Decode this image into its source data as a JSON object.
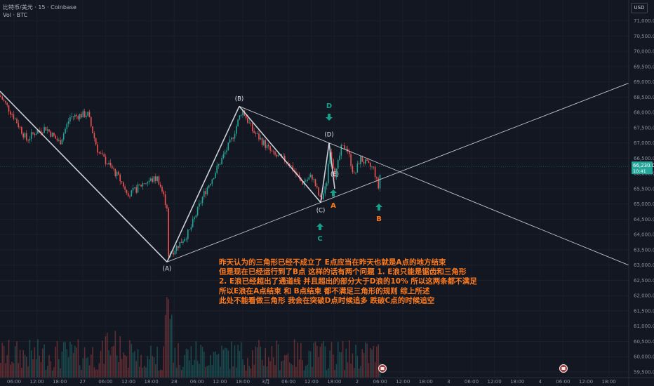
{
  "header": {
    "symbol_line": "比特币/美元 · 15 · Coinbase",
    "volume_line": "Vol · BTC"
  },
  "currency_button": "USD",
  "price_tag": {
    "price": "66,230.08",
    "countdown": "10:41"
  },
  "colors": {
    "background": "#131722",
    "up": "#26a69a",
    "down": "#ef5350",
    "lines": "#e0e3eb",
    "annotation": "#ff7a1a",
    "arrow": "#14a08a",
    "price_tag": "#26a69a"
  },
  "chart_data": {
    "type": "candlestick",
    "y_ticks": [
      "71,000.00",
      "70,500.00",
      "70,000.00",
      "69,500.00",
      "69,000.00",
      "68,500.00",
      "68,000.00",
      "67,500.00",
      "67,000.00",
      "66,500.00",
      "66,000.00",
      "65,500.00",
      "65,000.00",
      "64,500.00",
      "64,000.00",
      "63,500.00",
      "63,000.00",
      "62,500.00",
      "62,000.00",
      "61,500.00",
      "61,000.00",
      "60,500.00",
      "60,000.00",
      "59,500.00"
    ],
    "ylim": [
      59400,
      71500
    ],
    "x_ticks": [
      "06:00",
      "12:00",
      "18:00",
      "27",
      "06:00",
      "12:00",
      "18:00",
      "28",
      "06:00",
      "12:00",
      "18:00",
      "3月",
      "06:00",
      "12:00",
      "18:00",
      "2",
      "06:00",
      "12:00",
      "18:00",
      "3",
      "06:00",
      "12:00",
      "18:00",
      "4",
      "06:00",
      "12:00",
      "18:00",
      "5"
    ],
    "wave_points": [
      {
        "label": "(A)",
        "price": 63100
      },
      {
        "label": "(B)",
        "price": 68200
      },
      {
        "label": "(C)",
        "price": 65050
      },
      {
        "label": "(D)",
        "price": 67000
      },
      {
        "label": "(E)",
        "price": 65500
      }
    ],
    "arrow_labels": [
      {
        "label": "D",
        "direction": "down"
      },
      {
        "label": "A",
        "direction": "up"
      },
      {
        "label": "C",
        "direction": "up"
      },
      {
        "label": "B",
        "direction": "up"
      }
    ],
    "annotation_lines": [
      "昨天认为的三角形已经不成立了 E点应当在昨天也就是A点的地方结束",
      "但是现在已经运行到了B点 这样的话有两个问题 1. E浪只能是锯齿和三角形",
      "2. E浪已经超出了通道线 并且超出的部分大于D浪的10% 所以这两条都不满足",
      "所以E浪在A点结束 和 B点结束 都不满足三角形的规则 综上所述",
      "此处不能看做三角形  我会在突破D点时候追多 跌破C点的时候追空"
    ],
    "close_price": 66230.08
  }
}
